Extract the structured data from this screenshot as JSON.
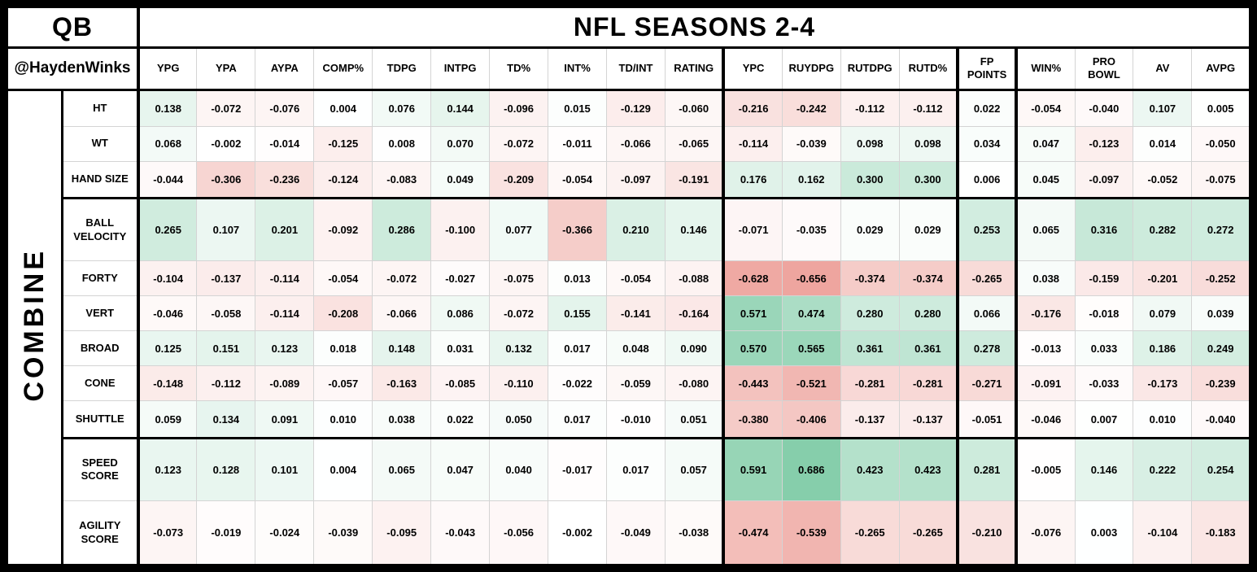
{
  "header": {
    "corner_label": "QB",
    "handle": "@HaydenWinks",
    "title": "NFL SEASONS 2-4",
    "side_label": "COMBINE"
  },
  "colors": {
    "positive": "#57bb8a",
    "negative": "#e67c73",
    "neutral": "#ffffff"
  },
  "chart_data": {
    "type": "heatmap",
    "title": "NFL SEASONS 2-4",
    "row_axis_label": "COMBINE",
    "legend": "correlation values, green = positive, red = negative, white = zero",
    "value_range": [
      -1,
      1
    ],
    "columns": [
      "YPG",
      "YPA",
      "AYPA",
      "COMP%",
      "TDPG",
      "INTPG",
      "TD%",
      "INT%",
      "TD/INT",
      "RATING",
      "YPC",
      "RUYDPG",
      "RUTDPG",
      "RUTD%",
      "FP POINTS",
      "WIN%",
      "PRO BOWL",
      "AV",
      "AVPG"
    ],
    "column_group_ends": [
      9,
      13,
      14
    ],
    "rows": [
      "HT",
      "WT",
      "HAND SIZE",
      "BALL VELOCITY",
      "FORTY",
      "VERT",
      "BROAD",
      "CONE",
      "SHUTTLE",
      "SPEED SCORE",
      "AGILITY SCORE"
    ],
    "row_group_ends": [
      2,
      8
    ],
    "values": [
      [
        0.138,
        -0.072,
        -0.076,
        0.004,
        0.076,
        0.144,
        -0.096,
        0.015,
        -0.129,
        -0.06,
        -0.216,
        -0.242,
        -0.112,
        -0.112,
        0.022,
        -0.054,
        -0.04,
        0.107,
        0.005
      ],
      [
        0.068,
        -0.002,
        -0.014,
        -0.125,
        0.008,
        0.07,
        -0.072,
        -0.011,
        -0.066,
        -0.065,
        -0.114,
        -0.039,
        0.098,
        0.098,
        0.034,
        0.047,
        -0.123,
        0.014,
        -0.05
      ],
      [
        -0.044,
        -0.306,
        -0.236,
        -0.124,
        -0.083,
        0.049,
        -0.209,
        -0.054,
        -0.097,
        -0.191,
        0.176,
        0.162,
        0.3,
        0.3,
        0.006,
        0.045,
        -0.097,
        -0.052,
        -0.075
      ],
      [
        0.265,
        0.107,
        0.201,
        -0.092,
        0.286,
        -0.1,
        0.077,
        -0.366,
        0.21,
        0.146,
        -0.071,
        -0.035,
        0.029,
        0.029,
        0.253,
        0.065,
        0.316,
        0.282,
        0.272
      ],
      [
        -0.104,
        -0.137,
        -0.114,
        -0.054,
        -0.072,
        -0.027,
        -0.075,
        0.013,
        -0.054,
        -0.088,
        -0.628,
        -0.656,
        -0.374,
        -0.374,
        -0.265,
        0.038,
        -0.159,
        -0.201,
        -0.252
      ],
      [
        -0.046,
        -0.058,
        -0.114,
        -0.208,
        -0.066,
        0.086,
        -0.072,
        0.155,
        -0.141,
        -0.164,
        0.571,
        0.474,
        0.28,
        0.28,
        0.066,
        -0.176,
        -0.018,
        0.079,
        0.039
      ],
      [
        0.125,
        0.151,
        0.123,
        0.018,
        0.148,
        0.031,
        0.132,
        0.017,
        0.048,
        0.09,
        0.57,
        0.565,
        0.361,
        0.361,
        0.278,
        -0.013,
        0.033,
        0.186,
        0.249
      ],
      [
        -0.148,
        -0.112,
        -0.089,
        -0.057,
        -0.163,
        -0.085,
        -0.11,
        -0.022,
        -0.059,
        -0.08,
        -0.443,
        -0.521,
        -0.281,
        -0.281,
        -0.271,
        -0.091,
        -0.033,
        -0.173,
        -0.239
      ],
      [
        0.059,
        0.134,
        0.091,
        0.01,
        0.038,
        0.022,
        0.05,
        0.017,
        -0.01,
        0.051,
        -0.38,
        -0.406,
        -0.137,
        -0.137,
        -0.051,
        -0.046,
        0.007,
        0.01,
        -0.04
      ],
      [
        0.123,
        0.128,
        0.101,
        0.004,
        0.065,
        0.047,
        0.04,
        -0.017,
        0.017,
        0.057,
        0.591,
        0.686,
        0.423,
        0.423,
        0.281,
        -0.005,
        0.146,
        0.222,
        0.254
      ],
      [
        -0.073,
        -0.019,
        -0.024,
        -0.039,
        -0.095,
        -0.043,
        -0.056,
        -0.002,
        -0.049,
        -0.038,
        -0.474,
        -0.539,
        -0.265,
        -0.265,
        -0.21,
        -0.076,
        0.003,
        -0.104,
        -0.183
      ]
    ]
  }
}
